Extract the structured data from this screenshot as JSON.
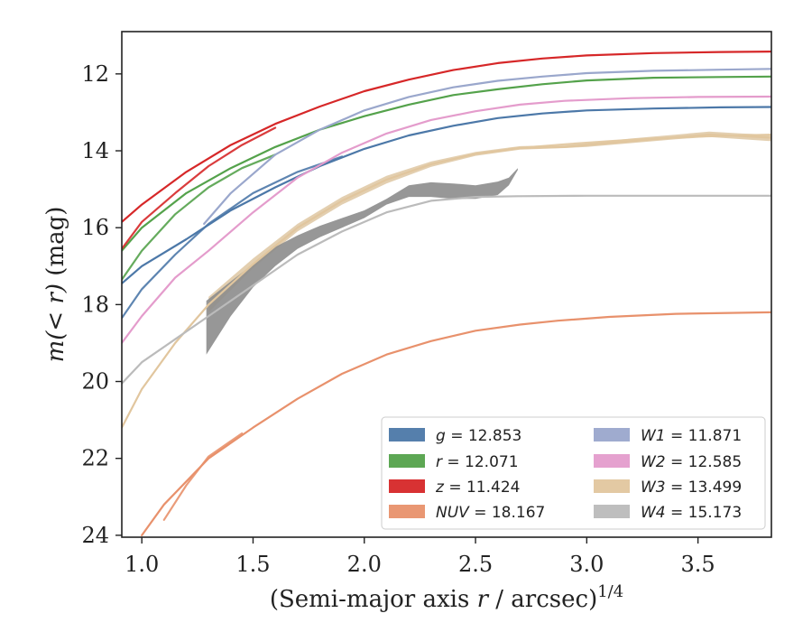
{
  "chart_data": {
    "type": "line",
    "title": "",
    "xlabel": "(Semi-major axis r / arcsec)",
    "xlabel_italic": "r",
    "xlabel_prefix": "(Semi-major axis ",
    "xlabel_suffix": " / arcsec)",
    "xlabel_superscript": "1/4",
    "ylabel": "m(< r) (mag)",
    "ylabel_math": "m(< r)",
    "ylabel_unit": " (mag)",
    "xlim": [
      0.91,
      3.83
    ],
    "ylim": [
      24.05,
      10.9
    ],
    "y_inverted": true,
    "x_ticks": [
      1.0,
      1.5,
      2.0,
      2.5,
      3.0,
      3.5
    ],
    "x_tick_labels": [
      "1.0",
      "1.5",
      "2.0",
      "2.5",
      "3.0",
      "3.5"
    ],
    "y_ticks": [
      12,
      14,
      16,
      18,
      20,
      22,
      24
    ],
    "y_tick_labels": [
      "12",
      "14",
      "16",
      "18",
      "20",
      "22",
      "24"
    ],
    "grid": false,
    "legend_position": "lower-right",
    "legend_columns": 2,
    "series": [
      {
        "name": "g",
        "legend_label": "g = 12.853",
        "color": "#4c78a8",
        "data": [
          [
            0.91,
            17.45
          ],
          [
            1.0,
            17.0
          ],
          [
            1.2,
            16.3
          ],
          [
            1.4,
            15.55
          ],
          [
            1.6,
            14.95
          ],
          [
            1.8,
            14.4
          ],
          [
            2.0,
            13.95
          ],
          [
            2.2,
            13.6
          ],
          [
            2.4,
            13.35
          ],
          [
            2.6,
            13.15
          ],
          [
            2.8,
            13.03
          ],
          [
            3.0,
            12.95
          ],
          [
            3.3,
            12.9
          ],
          [
            3.6,
            12.87
          ],
          [
            3.83,
            12.86
          ]
        ],
        "data_alt": [
          [
            0.91,
            18.35
          ],
          [
            1.0,
            17.6
          ],
          [
            1.15,
            16.7
          ],
          [
            1.3,
            15.9
          ],
          [
            1.5,
            15.1
          ],
          [
            1.7,
            14.55
          ],
          [
            1.9,
            14.15
          ]
        ]
      },
      {
        "name": "r",
        "legend_label": "r = 12.071",
        "color": "#54a24b",
        "data": [
          [
            0.91,
            16.6
          ],
          [
            1.0,
            16.0
          ],
          [
            1.2,
            15.1
          ],
          [
            1.4,
            14.45
          ],
          [
            1.6,
            13.9
          ],
          [
            1.8,
            13.45
          ],
          [
            2.0,
            13.1
          ],
          [
            2.2,
            12.8
          ],
          [
            2.4,
            12.55
          ],
          [
            2.6,
            12.4
          ],
          [
            2.8,
            12.27
          ],
          [
            3.0,
            12.17
          ],
          [
            3.3,
            12.1
          ],
          [
            3.6,
            12.08
          ],
          [
            3.83,
            12.07
          ]
        ],
        "data_alt": [
          [
            0.91,
            17.35
          ],
          [
            1.0,
            16.6
          ],
          [
            1.15,
            15.65
          ],
          [
            1.3,
            14.95
          ],
          [
            1.45,
            14.45
          ],
          [
            1.6,
            14.1
          ]
        ]
      },
      {
        "name": "z",
        "legend_label": "z = 11.424",
        "color": "#d62728",
        "data": [
          [
            0.91,
            15.85
          ],
          [
            1.0,
            15.4
          ],
          [
            1.2,
            14.55
          ],
          [
            1.4,
            13.85
          ],
          [
            1.6,
            13.3
          ],
          [
            1.8,
            12.85
          ],
          [
            2.0,
            12.45
          ],
          [
            2.2,
            12.15
          ],
          [
            2.4,
            11.9
          ],
          [
            2.6,
            11.72
          ],
          [
            2.8,
            11.6
          ],
          [
            3.0,
            11.52
          ],
          [
            3.3,
            11.46
          ],
          [
            3.6,
            11.43
          ],
          [
            3.83,
            11.42
          ]
        ],
        "data_alt": [
          [
            0.91,
            16.55
          ],
          [
            1.0,
            15.85
          ],
          [
            1.15,
            15.1
          ],
          [
            1.3,
            14.4
          ],
          [
            1.45,
            13.85
          ],
          [
            1.6,
            13.4
          ]
        ]
      },
      {
        "name": "NUV",
        "legend_label": "NUV = 18.167",
        "color": "#e8916c",
        "data": [
          [
            1.0,
            24.0
          ],
          [
            1.1,
            23.2
          ],
          [
            1.3,
            22.0
          ],
          [
            1.5,
            21.2
          ],
          [
            1.7,
            20.45
          ],
          [
            1.9,
            19.8
          ],
          [
            2.1,
            19.3
          ],
          [
            2.3,
            18.95
          ],
          [
            2.5,
            18.68
          ],
          [
            2.7,
            18.52
          ],
          [
            2.87,
            18.42
          ],
          [
            3.1,
            18.32
          ],
          [
            3.4,
            18.24
          ],
          [
            3.83,
            18.2
          ]
        ],
        "data_alt": [
          [
            1.1,
            23.6
          ],
          [
            1.2,
            22.7
          ],
          [
            1.3,
            21.95
          ],
          [
            1.45,
            21.35
          ]
        ]
      },
      {
        "name": "W1",
        "legend_label": "W1 = 11.871",
        "color": "#9aa7cc",
        "data": [
          [
            1.28,
            15.9
          ],
          [
            1.4,
            15.1
          ],
          [
            1.6,
            14.1
          ],
          [
            1.8,
            13.45
          ],
          [
            2.0,
            12.95
          ],
          [
            2.2,
            12.6
          ],
          [
            2.4,
            12.35
          ],
          [
            2.6,
            12.18
          ],
          [
            2.8,
            12.07
          ],
          [
            3.0,
            11.98
          ],
          [
            3.3,
            11.92
          ],
          [
            3.6,
            11.89
          ],
          [
            3.83,
            11.87
          ]
        ],
        "data_alt": []
      },
      {
        "name": "W2",
        "legend_label": "W2 = 12.585",
        "color": "#e49ccc",
        "data": [
          [
            0.91,
            19.0
          ],
          [
            1.0,
            18.3
          ],
          [
            1.15,
            17.3
          ],
          [
            1.3,
            16.6
          ],
          [
            1.5,
            15.6
          ],
          [
            1.7,
            14.7
          ],
          [
            1.9,
            14.05
          ],
          [
            2.1,
            13.55
          ],
          [
            2.3,
            13.2
          ],
          [
            2.5,
            12.97
          ],
          [
            2.7,
            12.8
          ],
          [
            2.9,
            12.7
          ],
          [
            3.2,
            12.63
          ],
          [
            3.5,
            12.6
          ],
          [
            3.83,
            12.59
          ]
        ],
        "data_alt": []
      },
      {
        "name": "W3",
        "legend_label": "W3 = 13.499",
        "color": "#e1c69e",
        "data": [
          [
            0.91,
            21.2
          ],
          [
            1.0,
            20.2
          ],
          [
            1.15,
            19.0
          ],
          [
            1.3,
            18.0
          ],
          [
            1.5,
            16.95
          ],
          [
            1.7,
            16.0
          ],
          [
            1.9,
            15.3
          ],
          [
            2.1,
            14.75
          ],
          [
            2.3,
            14.35
          ],
          [
            2.5,
            14.08
          ],
          [
            2.7,
            13.93
          ],
          [
            2.9,
            13.9
          ],
          [
            3.0,
            13.85
          ],
          [
            3.2,
            13.75
          ],
          [
            3.4,
            13.65
          ],
          [
            3.55,
            13.58
          ],
          [
            3.7,
            13.62
          ],
          [
            3.83,
            13.66
          ]
        ],
        "data_alt": [
          [
            2.65,
            13.95
          ],
          [
            2.9,
            13.83
          ],
          [
            3.1,
            13.75
          ],
          [
            3.3,
            13.68
          ],
          [
            3.5,
            13.63
          ],
          [
            3.7,
            13.6
          ],
          [
            3.83,
            13.58
          ]
        ]
      },
      {
        "name": "W4",
        "legend_label": "W4 = 15.173",
        "color": "#bbbbbb",
        "data": [
          [
            0.91,
            20.05
          ],
          [
            1.0,
            19.5
          ],
          [
            1.15,
            18.9
          ],
          [
            1.3,
            18.3
          ],
          [
            1.5,
            17.5
          ],
          [
            1.7,
            16.7
          ],
          [
            1.9,
            16.1
          ],
          [
            2.1,
            15.6
          ],
          [
            2.3,
            15.3
          ],
          [
            2.5,
            15.2
          ],
          [
            2.69,
            15.18
          ],
          [
            3.0,
            15.17
          ],
          [
            3.5,
            15.17
          ],
          [
            3.83,
            15.17
          ]
        ],
        "data_alt": []
      }
    ],
    "uncertainty_bands": [
      {
        "name": "W3",
        "color": "#d9bf95",
        "x": [
          1.3,
          1.5,
          1.7,
          1.9,
          2.1,
          2.3,
          2.5,
          2.7,
          2.9,
          3.0,
          3.2,
          3.4,
          3.55,
          3.7,
          3.83
        ],
        "upper": [
          18.2,
          17.05,
          16.1,
          15.4,
          14.85,
          14.42,
          14.13,
          13.97,
          13.93,
          13.9,
          13.8,
          13.7,
          13.64,
          13.7,
          13.75
        ],
        "lower": [
          17.8,
          16.8,
          15.9,
          15.2,
          14.65,
          14.28,
          14.03,
          13.88,
          13.85,
          13.8,
          13.68,
          13.58,
          13.5,
          13.55,
          13.58
        ]
      },
      {
        "name": "W4",
        "color": "#8c8c8c",
        "x": [
          1.29,
          1.4,
          1.5,
          1.6,
          1.7,
          1.8,
          1.9,
          2.0,
          2.1,
          2.2,
          2.3,
          2.4,
          2.5,
          2.6,
          2.65,
          2.69
        ],
        "upper": [
          19.3,
          18.3,
          17.55,
          17.0,
          16.55,
          16.25,
          16.0,
          15.75,
          15.4,
          15.2,
          15.2,
          15.25,
          15.25,
          15.15,
          14.9,
          14.5
        ],
        "lower": [
          17.9,
          17.4,
          16.95,
          16.5,
          16.2,
          15.95,
          15.75,
          15.55,
          15.25,
          14.9,
          14.82,
          14.85,
          14.9,
          14.8,
          14.7,
          14.45
        ]
      }
    ]
  }
}
